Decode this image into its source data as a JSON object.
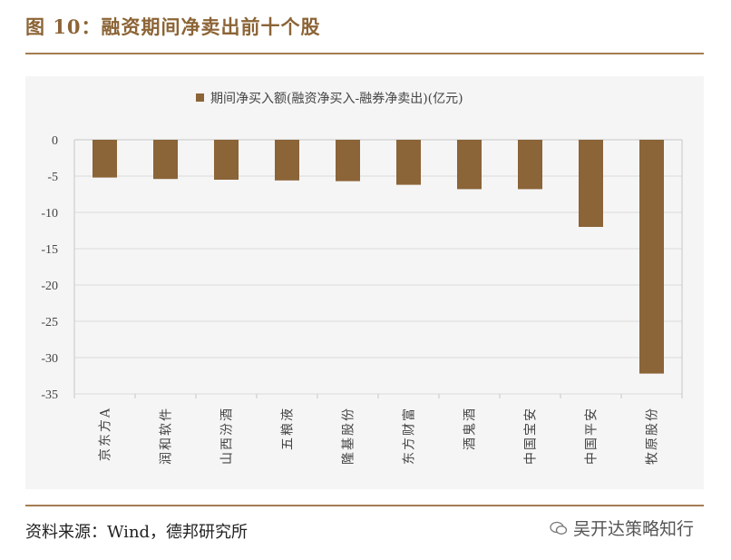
{
  "figure": {
    "title": "图 10：融资期间净卖出前十个股",
    "source": "资料来源：Wind，德邦研究所",
    "watermark": "吴开达策略知行",
    "watermark_icon": "wechat-icon"
  },
  "colors": {
    "bar": "#8b6438",
    "accent": "#a57c52",
    "panel": "#f5f5f5"
  },
  "chart_data": {
    "type": "bar",
    "categories": [
      "京东方A",
      "润和软件",
      "山西汾酒",
      "五粮液",
      "隆基股份",
      "东方财富",
      "酒鬼酒",
      "中国宝安",
      "中国平安",
      "牧原股份"
    ],
    "series": [
      {
        "name": "期间净买入额(融资净买入-融券净卖出)(亿元)",
        "values": [
          -5.2,
          -5.4,
          -5.5,
          -5.6,
          -5.7,
          -6.2,
          -6.8,
          -6.8,
          -12.0,
          -32.2
        ]
      }
    ],
    "ylim": [
      -35,
      0
    ],
    "yticks": [
      "0",
      "-5",
      "-10",
      "-15",
      "-20",
      "-25",
      "-30",
      "-35"
    ],
    "legend_position": "top-center",
    "grid": true
  }
}
